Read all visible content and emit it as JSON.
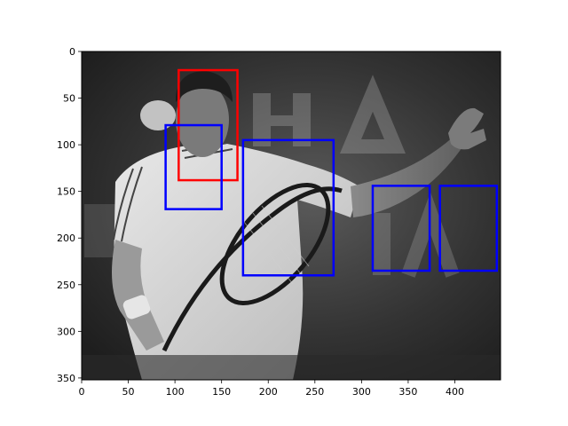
{
  "image": {
    "description_icon": "grayscale-photo-tennis-player",
    "width_data": 449,
    "height_data": 352
  },
  "axes": {
    "x_ticks": [
      "0",
      "50",
      "100",
      "150",
      "200",
      "250",
      "300",
      "350",
      "400"
    ],
    "x_tick_values": [
      0,
      50,
      100,
      150,
      200,
      250,
      300,
      350,
      400
    ],
    "y_ticks": [
      "0",
      "50",
      "100",
      "150",
      "200",
      "250",
      "300",
      "350"
    ],
    "y_tick_values": [
      0,
      50,
      100,
      150,
      200,
      250,
      300,
      350
    ],
    "xlim": [
      0,
      449
    ],
    "ylim": [
      352,
      0
    ]
  },
  "boxes": [
    {
      "color": "#ff0000",
      "x0": 104,
      "y0": 20,
      "x1": 167,
      "y1": 138
    },
    {
      "color": "#0000ff",
      "x0": 90,
      "y0": 79,
      "x1": 150,
      "y1": 169
    },
    {
      "color": "#0000ff",
      "x0": 173,
      "y0": 95,
      "x1": 270,
      "y1": 240
    },
    {
      "color": "#0000ff",
      "x0": 312,
      "y0": 144,
      "x1": 373,
      "y1": 235
    },
    {
      "color": "#0000ff",
      "x0": 384,
      "y0": 144,
      "x1": 445,
      "y1": 235
    }
  ],
  "colors": {
    "red_box": "#ff0000",
    "blue_box": "#0000ff"
  }
}
